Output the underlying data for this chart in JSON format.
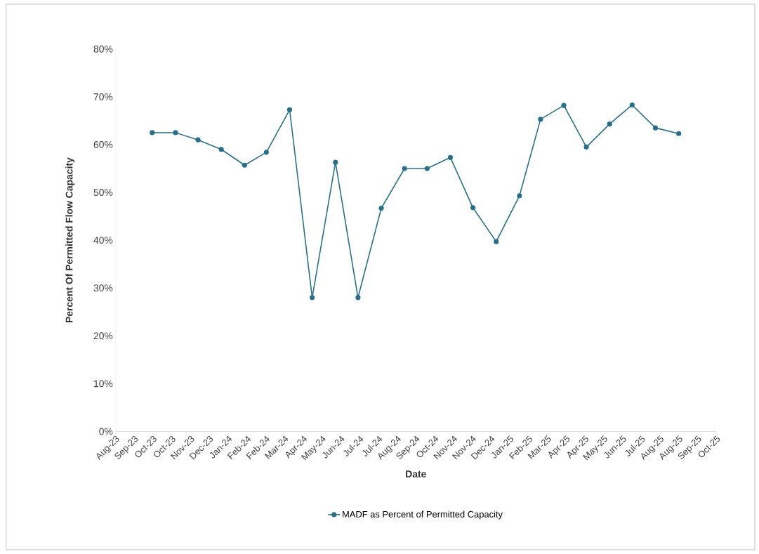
{
  "chart_data": {
    "type": "line",
    "xlabel": "Date",
    "ylabel": "Percent Of Permitted Flow Capacity",
    "x": [
      "2023-09-30",
      "2023-10-31",
      "2023-11-30",
      "2023-12-31",
      "2024-01-31",
      "2024-02-29",
      "2024-03-31",
      "2024-04-30",
      "2024-05-31",
      "2024-06-30",
      "2024-07-31",
      "2024-08-31",
      "2024-09-30",
      "2024-10-31",
      "2024-11-30",
      "2024-12-31",
      "2025-01-31",
      "2025-02-28",
      "2025-03-31",
      "2025-04-30",
      "2025-05-31",
      "2025-06-30",
      "2025-07-31",
      "2025-08-31"
    ],
    "series": [
      {
        "name": "MADF as Percent of Permitted Capacity",
        "color": "#2a6f8a",
        "values": [
          62.5,
          62.5,
          61.0,
          59.0,
          55.7,
          58.4,
          67.3,
          28.0,
          56.3,
          28.0,
          46.7,
          55.0,
          55.0,
          57.3,
          46.8,
          39.7,
          49.3,
          65.3,
          68.2,
          59.5,
          64.3,
          68.3,
          63.5,
          62.3
        ]
      }
    ],
    "xlim": [
      "2023-08-12",
      "2025-10-20"
    ],
    "xticks": [
      {
        "value": "2023-08-12",
        "label": "Aug-23"
      },
      {
        "value": "2023-09-06",
        "label": "Sep-23"
      },
      {
        "value": "2023-10-01",
        "label": "Oct-23"
      },
      {
        "value": "2023-10-26",
        "label": "Oct-23"
      },
      {
        "value": "2023-11-20",
        "label": "Nov-23"
      },
      {
        "value": "2023-12-15",
        "label": "Dec-23"
      },
      {
        "value": "2024-01-09",
        "label": "Jan-24"
      },
      {
        "value": "2024-02-03",
        "label": "Feb-24"
      },
      {
        "value": "2024-02-28",
        "label": "Feb-24"
      },
      {
        "value": "2024-03-24",
        "label": "Mar-24"
      },
      {
        "value": "2024-04-18",
        "label": "Apr-24"
      },
      {
        "value": "2024-05-13",
        "label": "May-24"
      },
      {
        "value": "2024-06-07",
        "label": "Jun-24"
      },
      {
        "value": "2024-07-02",
        "label": "Jul-24"
      },
      {
        "value": "2024-07-27",
        "label": "Jul-24"
      },
      {
        "value": "2024-08-21",
        "label": "Aug-24"
      },
      {
        "value": "2024-09-15",
        "label": "Sep-24"
      },
      {
        "value": "2024-10-10",
        "label": "Oct-24"
      },
      {
        "value": "2024-11-04",
        "label": "Nov-24"
      },
      {
        "value": "2024-11-29",
        "label": "Nov-24"
      },
      {
        "value": "2024-12-24",
        "label": "Dec-24"
      },
      {
        "value": "2025-01-18",
        "label": "Jan-25"
      },
      {
        "value": "2025-02-12",
        "label": "Feb-25"
      },
      {
        "value": "2025-03-09",
        "label": "Mar-25"
      },
      {
        "value": "2025-04-03",
        "label": "Apr-25"
      },
      {
        "value": "2025-04-28",
        "label": "Apr-25"
      },
      {
        "value": "2025-05-23",
        "label": "May-25"
      },
      {
        "value": "2025-06-17",
        "label": "Jun-25"
      },
      {
        "value": "2025-07-12",
        "label": "Jul-25"
      },
      {
        "value": "2025-08-06",
        "label": "Aug-25"
      },
      {
        "value": "2025-08-31",
        "label": "Aug-25"
      },
      {
        "value": "2025-09-25",
        "label": "Sep-25"
      },
      {
        "value": "2025-10-20",
        "label": "Oct-25"
      }
    ],
    "ylim": [
      0,
      80
    ],
    "yticks": [
      {
        "value": 0,
        "label": "0%"
      },
      {
        "value": 10,
        "label": "10%"
      },
      {
        "value": 20,
        "label": "20%"
      },
      {
        "value": 30,
        "label": "30%"
      },
      {
        "value": 40,
        "label": "40%"
      },
      {
        "value": 50,
        "label": "50%"
      },
      {
        "value": 60,
        "label": "60%"
      },
      {
        "value": 70,
        "label": "70%"
      },
      {
        "value": 80,
        "label": "80%"
      }
    ],
    "grid": false,
    "legend": "bottom",
    "marker": "circle",
    "line_style": "solid"
  }
}
